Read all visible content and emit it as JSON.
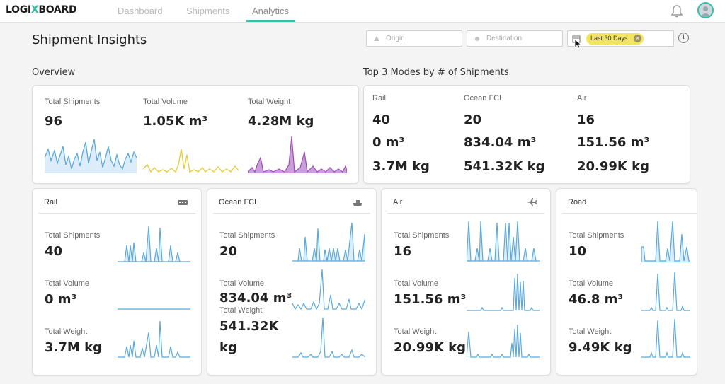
{
  "app": {
    "logo_left": "LOGI",
    "logo_x": "X",
    "logo_right": "BOARD"
  },
  "nav": {
    "tabs": [
      {
        "label": "Dashboard"
      },
      {
        "label": "Shipments"
      },
      {
        "label": "Analytics",
        "active": true
      }
    ]
  },
  "header": {
    "title": "Shipment Insights",
    "origin_placeholder": "Origin",
    "destination_placeholder": "Destination",
    "date_chip": "Last 30 Days"
  },
  "overview": {
    "title": "Overview",
    "metrics": [
      {
        "label": "Total Shipments",
        "value": "96"
      },
      {
        "label": "Total Volume",
        "value": "1.05K m³"
      },
      {
        "label": "Total Weight",
        "value": "4.28M kg"
      }
    ]
  },
  "top_modes": {
    "title": "Top 3 Modes by # of Shipments",
    "modes": [
      {
        "name": "Rail",
        "shipments": "40",
        "volume": "0 m³",
        "weight": "3.7M kg"
      },
      {
        "name": "Ocean FCL",
        "shipments": "20",
        "volume": "834.04 m³",
        "weight": "541.32K kg"
      },
      {
        "name": "Air",
        "shipments": "16",
        "volume": "151.56 m³",
        "weight": "20.99K kg"
      }
    ]
  },
  "mode_cards": [
    {
      "name": "Rail",
      "icon": "train-icon",
      "shipments_label": "Total Shipments",
      "shipments": "40",
      "volume_label": "Total Volume",
      "volume": "0 m³",
      "weight_label": "Total Weight",
      "weight": "3.7M kg"
    },
    {
      "name": "Ocean FCL",
      "icon": "ship-icon",
      "shipments_label": "Total Shipments",
      "shipments": "20",
      "volume_label": "Total Volume",
      "volume": "834.04 m³",
      "weight_label": "Total Weight",
      "weight_line1": "541.32K",
      "weight_line2": "kg"
    },
    {
      "name": "Air",
      "icon": "airplane-icon",
      "shipments_label": "Total Shipments",
      "shipments": "16",
      "volume_label": "Total Volume",
      "volume": "151.56 m³",
      "weight_label": "Total Weight",
      "weight": "20.99K kg"
    },
    {
      "name": "Road",
      "icon": "truck-icon",
      "shipments_label": "Total Shipments",
      "shipments": "10",
      "volume_label": "Total Volume",
      "volume": "46.8 m³",
      "weight_label": "Total Weight",
      "weight": "9.49K kg"
    }
  ],
  "colors": {
    "accent": "#33c0a4",
    "shipments_line": "#5aa9dc",
    "shipments_fill": "#dcecf8",
    "volume_line": "#e6cc35",
    "weight_line": "#9a50b0",
    "weight_fill": "#c89fd6",
    "chip": "#f3e55b"
  }
}
